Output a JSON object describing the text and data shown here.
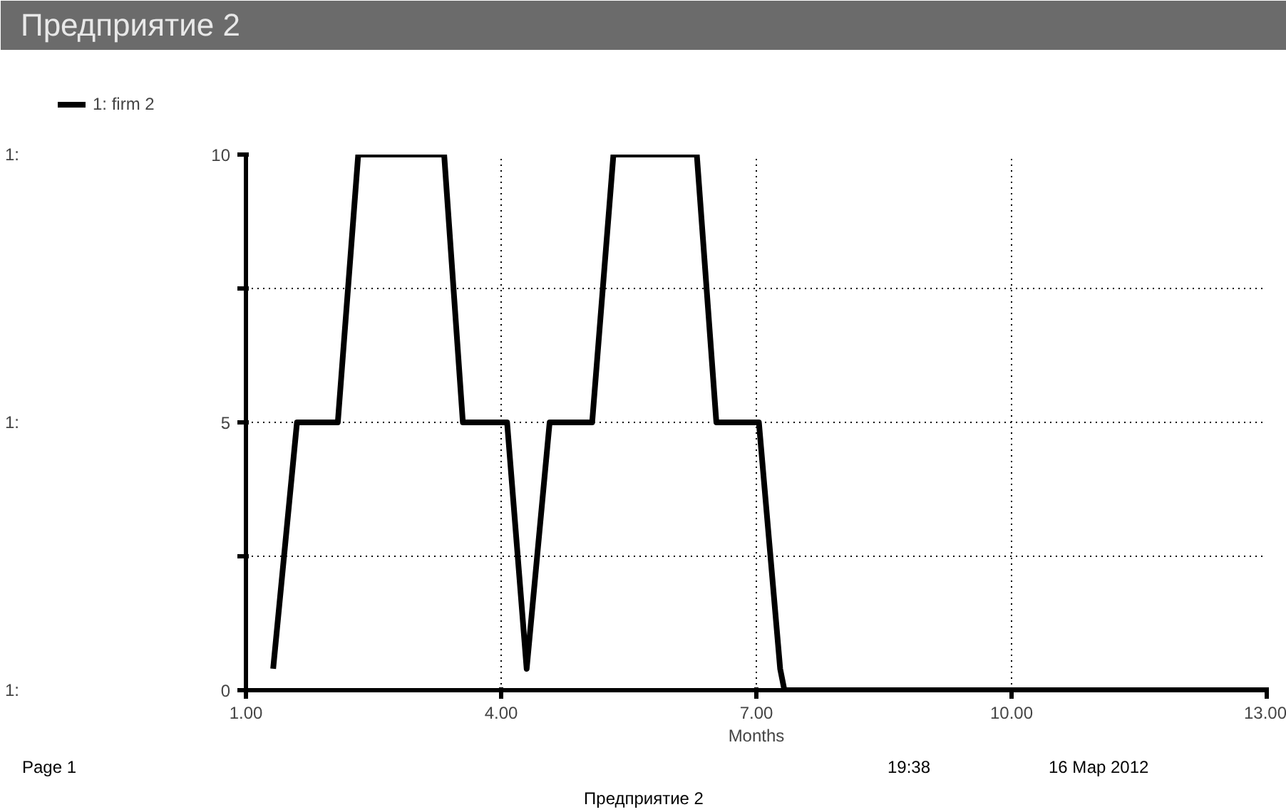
{
  "chart_data": {
    "type": "line",
    "title": "Предприятие 2",
    "xlabel": "Months",
    "x": [
      1.32,
      1.6,
      2.08,
      2.32,
      3.33,
      3.55,
      4.07,
      4.3,
      4.57,
      5.07,
      5.32,
      6.3,
      6.53,
      7.03,
      7.28,
      7.33,
      13
    ],
    "series": [
      {
        "name": "1: firm 2",
        "color": "#000000",
        "values": [
          0.4,
          5,
          5,
          10,
          10,
          5,
          5,
          0.4,
          5,
          5,
          10,
          10,
          5,
          5,
          0.4,
          0,
          0
        ]
      }
    ],
    "xlim": [
      1,
      13
    ],
    "xticks": [
      {
        "value": 1,
        "label": "1.00"
      },
      {
        "value": 4,
        "label": "4.00"
      },
      {
        "value": 7,
        "label": "7.00"
      },
      {
        "value": 10,
        "label": "10.00"
      },
      {
        "value": 13,
        "label": "13.00"
      }
    ],
    "ylim": [
      0,
      10
    ],
    "yticks": [
      0,
      {
        "value": 2.5,
        "label": null
      },
      5,
      {
        "value": 7.5,
        "label": null
      },
      10
    ],
    "grid": true,
    "legend": "top left",
    "line_style": "solid",
    "marker": "none",
    "annotations": [
      "Page 1",
      "19:38",
      "16 Мар 2012",
      "Предприятие 2",
      "1:",
      "1:",
      "1:"
    ]
  }
}
